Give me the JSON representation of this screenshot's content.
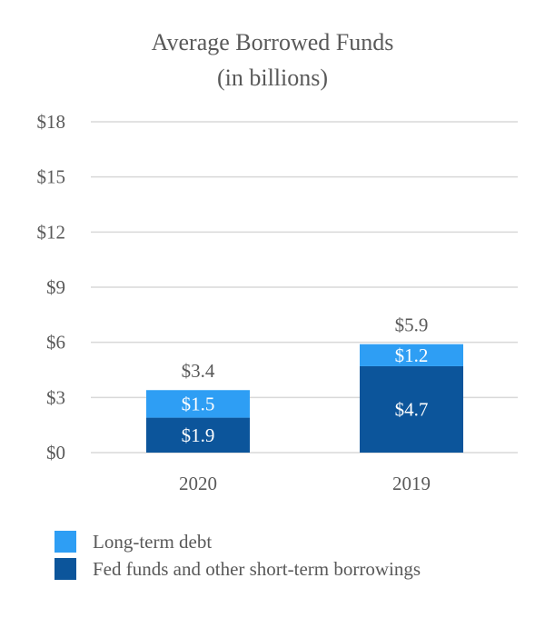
{
  "chart_data": {
    "type": "bar",
    "stacked": true,
    "title": [
      "Average Borrowed Funds",
      "(in billions)"
    ],
    "xlabel": "",
    "ylabel": "",
    "categories": [
      "2020",
      "2019"
    ],
    "ylim": [
      0,
      18
    ],
    "yticks": [
      0,
      3,
      6,
      9,
      12,
      15,
      18
    ],
    "ytick_labels": [
      "$0",
      "$3",
      "$6",
      "$9",
      "$12",
      "$15",
      "$18"
    ],
    "grid": true,
    "legend_position": "bottom-left",
    "series": [
      {
        "name": "Fed funds and other short-term borrowings",
        "values": [
          1.9,
          4.7
        ],
        "labels": [
          "$1.9",
          "$4.7"
        ],
        "color": "#0c559b"
      },
      {
        "name": "Long-term debt",
        "values": [
          1.5,
          1.2
        ],
        "labels": [
          "$1.5",
          "$1.2"
        ],
        "color": "#2e9ef4"
      }
    ],
    "totals": [
      3.4,
      5.9
    ],
    "total_labels": [
      "$3.4",
      "$5.9"
    ]
  },
  "legend": [
    {
      "label": "Long-term debt",
      "color": "#2e9ef4"
    },
    {
      "label": "Fed funds and other short-term borrowings",
      "color": "#0c559b"
    }
  ]
}
